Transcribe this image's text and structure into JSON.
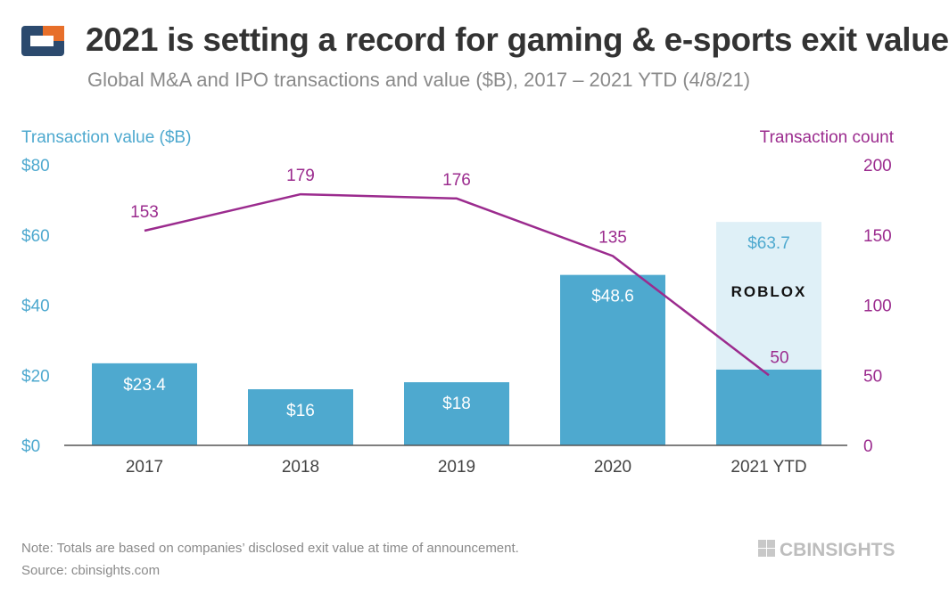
{
  "header": {
    "title": "2021 is setting a record for gaming & e-sports exit value",
    "subtitle": "Global M&A and IPO transactions and value ($B), 2017 – 2021 YTD (4/8/21)"
  },
  "footer": {
    "note": "Note: Totals are based on companies’ disclosed exit value at time of announcement.",
    "source": "Source: cbinsights.com",
    "brand": "CBINSIGHTS"
  },
  "colors": {
    "bar": "#4ea9cf",
    "bar_ytd_total": "#dff0f7",
    "line": "#9b2b8e",
    "left_axis": "#4ea9cf",
    "right_axis": "#9b2b8e",
    "axis_line": "#555555",
    "logo_blue": "#2c4a6e",
    "logo_orange": "#e76f2a"
  },
  "chart_data": {
    "type": "bar",
    "categories": [
      "2017",
      "2018",
      "2019",
      "2020",
      "2021 YTD"
    ],
    "series": [
      {
        "name": "Transaction value ($B)",
        "type": "bar",
        "axis": "left",
        "values": [
          23.4,
          16,
          18,
          48.6,
          21.6
        ],
        "labels": [
          "$23.4",
          "$16",
          "$18",
          "$48.6",
          ""
        ]
      },
      {
        "name": "Transaction count",
        "type": "line",
        "axis": "right",
        "values": [
          153,
          179,
          176,
          135,
          50
        ],
        "labels": [
          "153",
          "179",
          "176",
          "135",
          "50"
        ]
      }
    ],
    "ytd_total": {
      "category": "2021 YTD",
      "value": 63.7,
      "label": "$63.7",
      "annotation": "ROBLOX"
    },
    "ylabel_left": "Transaction value ($B)",
    "ylabel_right": "Transaction count",
    "ylim_left": [
      0,
      80
    ],
    "ylim_right": [
      0,
      200
    ],
    "yticks_left": [
      "$0",
      "$20",
      "$40",
      "$60",
      "$80"
    ],
    "yticks_right": [
      "0",
      "50",
      "100",
      "150",
      "200"
    ],
    "grid": false
  }
}
